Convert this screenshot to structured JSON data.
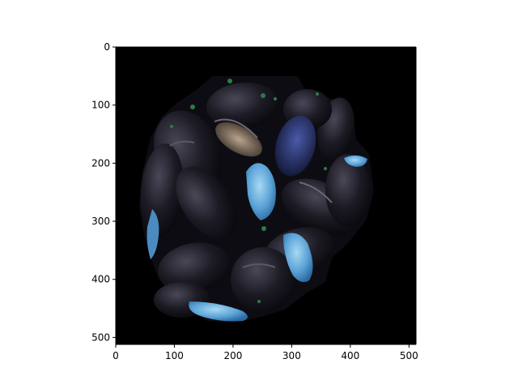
{
  "chart_data": {
    "type": "image",
    "title": "",
    "xlabel": "",
    "ylabel": "",
    "xlim": [
      0,
      512
    ],
    "ylim": [
      512,
      0
    ],
    "x_ticks": [
      0,
      100,
      200,
      300,
      400,
      500
    ],
    "y_ticks": [
      0,
      100,
      200,
      300,
      400,
      500
    ],
    "x_tick_labels": [
      "0",
      "100",
      "200",
      "300",
      "400",
      "500"
    ],
    "y_tick_labels": [
      "0",
      "100",
      "200",
      "300",
      "400",
      "500"
    ],
    "grid": false,
    "legend": "none",
    "image_content": "mussels-on-black-background",
    "colors": {
      "background": "#000000",
      "axes": "#000000",
      "shell_dark": "#1a1a22",
      "shell_highlight": "#5a5870",
      "blue_flesh": "#6fb3e0",
      "deep_blue": "#2a3a7a",
      "tan": "#8a7a6a",
      "green_fleck": "#2e7a4a"
    }
  }
}
